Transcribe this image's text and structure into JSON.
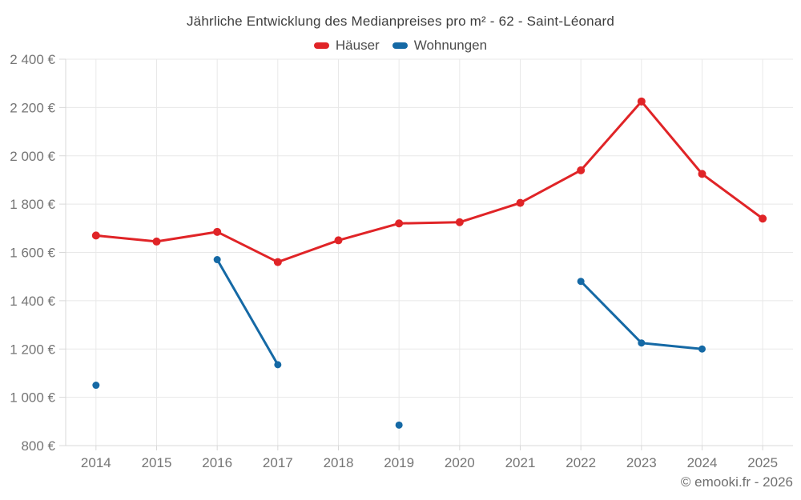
{
  "title": "Jährliche Entwicklung des Medianpreises pro m² - 62 - Saint-Léonard",
  "footer": {
    "copyright": "© emooki.fr - 2026"
  },
  "colors": {
    "background": "#ffffff",
    "grid": "#e8e8e8",
    "axis": "#d8d8d8",
    "tick_label": "#757575",
    "title_text": "#3d3d3d",
    "legend_text": "#4c4c4c",
    "copyright_text": "#6f6f6f",
    "hauser_red": "#e02427",
    "wohnungen_blue": "#1569a5"
  },
  "chart_data": {
    "type": "line",
    "title": "Jährliche Entwicklung des Medianpreises pro m² - 62 - Saint-Léonard",
    "categories": [
      "2014",
      "2015",
      "2016",
      "2017",
      "2018",
      "2019",
      "2020",
      "2021",
      "2022",
      "2023",
      "2024",
      "2025"
    ],
    "series": [
      {
        "name": "Häuser",
        "color": "#e02427",
        "line_width": 3,
        "marker_radius": 5,
        "values": [
          1670,
          1645,
          1685,
          1560,
          1650,
          1720,
          1725,
          1805,
          1940,
          2225,
          1925,
          1740
        ]
      },
      {
        "name": "Wohnungen",
        "color": "#1569a5",
        "line_width": 3,
        "marker_radius": 4.5,
        "values": [
          1050,
          null,
          1570,
          1135,
          null,
          885,
          null,
          null,
          1480,
          1225,
          1200,
          null
        ]
      }
    ],
    "xlabel": "",
    "ylabel": "",
    "ylim": [
      800,
      2400
    ],
    "ytick_step": 200,
    "ytick_labels": [
      "800 €",
      "1 000 €",
      "1 200 €",
      "1 400 €",
      "1 600 €",
      "1 800 €",
      "2 000 €",
      "2 200 €",
      "2 400 €"
    ],
    "grid": true,
    "legend_position": "top"
  }
}
